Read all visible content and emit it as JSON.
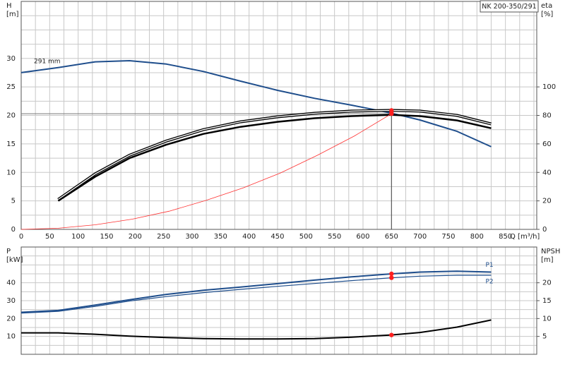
{
  "chart_data": [
    {
      "type": "line",
      "title": "NK 200-350/291",
      "ylabel": "H",
      "yunit": "[m]",
      "y2label": "eta",
      "y2unit": "[%]",
      "xlabel": "Q [m³/h]",
      "xlim": [
        0,
        905
      ],
      "ylim": [
        0,
        40
      ],
      "y2lim": [
        0,
        160
      ],
      "xticks": [
        0,
        50,
        100,
        150,
        200,
        250,
        300,
        350,
        400,
        450,
        500,
        550,
        600,
        650,
        700,
        750,
        800,
        850
      ],
      "xgrid": [
        25,
        75,
        125,
        175,
        225,
        275,
        325,
        375,
        425,
        475,
        525,
        575,
        625,
        675,
        725,
        775,
        825,
        875,
        900
      ],
      "yticks": [
        0,
        5,
        10,
        15,
        20,
        25,
        30
      ],
      "ygrid": [
        2.5,
        7.5,
        12.5,
        17.5,
        22.5,
        27.5,
        32.5,
        35,
        37.5
      ],
      "y2ticks": [
        0,
        20,
        40,
        60,
        80,
        100
      ],
      "operating_point": {
        "x": 650,
        "y": 20.3
      },
      "series": [
        {
          "name": "291 mm",
          "color": "#1f4e8c",
          "width": 2,
          "dot": true,
          "x": [
            0,
            65,
            130,
            190,
            255,
            320,
            385,
            450,
            515,
            580,
            650,
            700,
            765,
            825
          ],
          "values": [
            27.5,
            28.4,
            29.4,
            29.6,
            29.0,
            27.7,
            26.0,
            24.4,
            23.0,
            21.8,
            20.4,
            19.2,
            17.2,
            14.5
          ]
        },
        {
          "color": "#000000",
          "width": 4,
          "outline": true,
          "axis": "y2",
          "dot": true,
          "x": [
            65,
            130,
            190,
            255,
            320,
            385,
            450,
            515,
            580,
            650,
            700,
            765,
            825
          ],
          "values": [
            21,
            39,
            52,
            62,
            70,
            75.5,
            79,
            81.5,
            83,
            83.5,
            83,
            80,
            74
          ]
        },
        {
          "color": "#000000",
          "width": 2.5,
          "axis": "y2",
          "x": [
            65,
            130,
            190,
            255,
            320,
            385,
            450,
            515,
            580,
            650,
            700,
            765,
            825
          ],
          "values": [
            20,
            37,
            50,
            59.5,
            67,
            72,
            75.5,
            78,
            79.5,
            80.4,
            79.5,
            76.5,
            71
          ]
        },
        {
          "color": "#ff3030",
          "width": 0.8,
          "dot": true,
          "x": [
            0,
            65,
            130,
            195,
            260,
            325,
            390,
            455,
            520,
            585,
            650
          ],
          "values": [
            0,
            0.2,
            0.8,
            1.8,
            3.2,
            5.1,
            7.3,
            9.9,
            13,
            16.4,
            20.3
          ]
        }
      ]
    },
    {
      "type": "line",
      "ylabel": "P",
      "yunit": "[kW]",
      "y2label": "NPSH",
      "y2unit": "[m]",
      "xlim": [
        0,
        905
      ],
      "ylim": [
        0,
        60
      ],
      "y2lim": [
        0,
        30
      ],
      "xgrid": [
        0,
        25,
        50,
        75,
        100,
        125,
        150,
        175,
        200,
        225,
        250,
        275,
        300,
        325,
        350,
        375,
        400,
        425,
        450,
        475,
        500,
        525,
        550,
        575,
        600,
        625,
        650,
        675,
        700,
        725,
        750,
        775,
        800,
        825,
        850,
        875,
        900
      ],
      "yticks": [
        10,
        20,
        30,
        40
      ],
      "ygrid": [
        5,
        15,
        25,
        35,
        45,
        50,
        55
      ],
      "y2ticks": [
        5,
        10,
        15,
        20
      ],
      "series": [
        {
          "name": "P1",
          "color": "#1f4e8c",
          "width": 2,
          "dot": true,
          "x": [
            0,
            65,
            130,
            190,
            255,
            320,
            385,
            450,
            515,
            580,
            650,
            700,
            765,
            825
          ],
          "values": [
            23.5,
            24.5,
            27.5,
            30.5,
            33.5,
            35.8,
            37.6,
            39.5,
            41.5,
            43.3,
            45,
            46,
            46.5,
            46
          ]
        },
        {
          "name": "P2",
          "color": "#1f4e8c",
          "width": 1.2,
          "dot": true,
          "x": [
            0,
            65,
            130,
            190,
            255,
            320,
            385,
            450,
            515,
            580,
            650,
            700,
            765,
            825
          ],
          "values": [
            23,
            24,
            26.8,
            29.8,
            32.3,
            34.5,
            36.3,
            38,
            39.6,
            41.2,
            42.8,
            43.7,
            44.2,
            44.2
          ]
        },
        {
          "color": "#000000",
          "width": 2,
          "axis": "y2",
          "dot": true,
          "x": [
            0,
            65,
            130,
            190,
            255,
            320,
            385,
            450,
            515,
            580,
            650,
            700,
            765,
            825
          ],
          "values": [
            6,
            6,
            5.6,
            5.1,
            4.7,
            4.4,
            4.3,
            4.3,
            4.4,
            4.8,
            5.4,
            6.1,
            7.6,
            9.6
          ]
        }
      ]
    }
  ]
}
